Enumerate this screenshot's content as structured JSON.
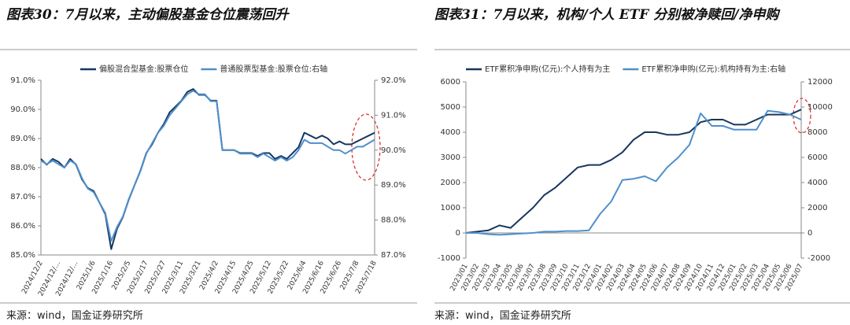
{
  "chart_data": [
    {
      "type": "line",
      "title": "图表30：7月以来，主动偏股基金仓位震荡回升",
      "source": "来源：wind，国金证券研究所",
      "categories": [
        "2024/12/2",
        null,
        null,
        "2024/12/…",
        null,
        null,
        "2024/12/…",
        null,
        null,
        "2025/1/6",
        null,
        null,
        "2025/1/16",
        null,
        null,
        "2025/2/5",
        null,
        null,
        "2025/2/17",
        null,
        null,
        "2025/2/27",
        null,
        null,
        "2025/3/11",
        null,
        null,
        "2025/3/21",
        null,
        null,
        "2025/4/2",
        null,
        null,
        "2025/4/15",
        null,
        null,
        "2025/4/25",
        null,
        null,
        "2025/5/12",
        null,
        null,
        "2025/5/22",
        null,
        null,
        "2025/6/4",
        null,
        null,
        "2025/6/16",
        null,
        null,
        "2025/6/26",
        null,
        null,
        "2025/7/8",
        null,
        null,
        "2025/7/18"
      ],
      "series": [
        {
          "name": "偏股混合型基金:股票仓位",
          "color": "#17375e",
          "values": [
            88.3,
            88.1,
            88.3,
            88.2,
            88.0,
            88.3,
            88.1,
            87.6,
            87.3,
            87.2,
            86.8,
            86.4,
            85.2,
            85.9,
            86.3,
            86.9,
            87.4,
            87.9,
            88.5,
            88.8,
            89.2,
            89.5,
            89.9,
            90.1,
            90.3,
            90.6,
            90.7,
            90.5,
            90.5,
            90.3,
            90.3,
            88.6,
            88.6,
            88.6,
            88.5,
            88.5,
            88.5,
            88.4,
            88.5,
            88.5,
            88.3,
            88.4,
            88.3,
            88.5,
            88.7,
            89.2,
            89.1,
            89.0,
            89.1,
            89.0,
            88.8,
            88.9,
            88.8,
            88.8,
            88.9,
            89.0,
            89.1,
            89.2
          ]
        },
        {
          "name": "普通股票型基金:股票仓位:右轴",
          "color": "#4f8fcc",
          "axis": "y2",
          "values": [
            89.7,
            89.6,
            89.7,
            89.6,
            89.5,
            89.7,
            89.6,
            89.2,
            88.9,
            88.8,
            88.5,
            88.2,
            87.4,
            87.8,
            88.1,
            88.6,
            89.0,
            89.4,
            89.9,
            90.2,
            90.5,
            90.7,
            91.0,
            91.2,
            91.4,
            91.6,
            91.7,
            91.6,
            91.6,
            91.4,
            91.4,
            90.0,
            90.0,
            90.0,
            89.9,
            89.9,
            89.9,
            89.8,
            89.9,
            89.8,
            89.7,
            89.8,
            89.7,
            89.8,
            90.0,
            90.3,
            90.2,
            90.2,
            90.2,
            90.1,
            90.0,
            90.0,
            89.9,
            90.0,
            90.1,
            90.1,
            90.2,
            90.3
          ]
        }
      ],
      "ylim": [
        85,
        91
      ],
      "yticks": [
        {
          "value": 85,
          "label": "85.0%"
        },
        {
          "value": 86,
          "label": "86.0%"
        },
        {
          "value": 87,
          "label": "87.0%"
        },
        {
          "value": 88,
          "label": "88.0%"
        },
        {
          "value": 89,
          "label": "89.0%"
        },
        {
          "value": 90,
          "label": "90.0%"
        },
        {
          "value": 91,
          "label": "91.0%"
        }
      ],
      "y2lim": [
        87,
        92
      ],
      "y2ticks": [
        {
          "value": 87,
          "label": "87.0%"
        },
        {
          "value": 88,
          "label": "88.0%"
        },
        {
          "value": 89,
          "label": "89.0%"
        },
        {
          "value": 90,
          "label": "90.0%"
        },
        {
          "value": 91,
          "label": "91.0%"
        },
        {
          "value": 92,
          "label": "92.0%"
        }
      ],
      "grid": false,
      "legend": "top"
    },
    {
      "type": "line",
      "title": "图表31：7月以来，机构/个人 ETF 分别被净赎回/净申购",
      "source": "来源：wind，国金证券研究所",
      "categories": [
        "2023/01",
        "2023/02",
        "2023/03",
        "2023/04",
        "2023/05",
        "2023/06",
        "2023/07",
        "2023/08",
        "2023/09",
        "2023/10",
        "2023/11",
        "2023/12",
        "2024/01",
        "2024/02",
        "2024/03",
        "2024/04",
        "2024/05",
        "2024/06",
        "2024/07",
        "2024/08",
        "2024/09",
        "2024/10",
        "2024/11",
        "2024/12",
        "2025/01",
        "2025/02",
        "2025/03",
        "2025/04",
        "2025/05",
        "2025/06",
        "2025/07"
      ],
      "series": [
        {
          "name": "ETF累积净申购(亿元):个人持有为主",
          "color": "#17375e",
          "values": [
            0,
            50,
            100,
            300,
            200,
            600,
            1000,
            1500,
            1800,
            2200,
            2600,
            2700,
            2700,
            2900,
            3200,
            3700,
            4000,
            4000,
            3900,
            3900,
            4000,
            4400,
            4500,
            4500,
            4300,
            4300,
            4500,
            4700,
            4700,
            4700,
            4900
          ]
        },
        {
          "name": "ETF累积净申购(亿元):机构持有为主:右轴",
          "color": "#4f8fcc",
          "axis": "y2",
          "values": [
            0,
            0,
            -100,
            -150,
            -100,
            -50,
            0,
            100,
            100,
            150,
            150,
            200,
            1500,
            2500,
            4200,
            4300,
            4500,
            4100,
            5200,
            6000,
            7000,
            9500,
            8500,
            8500,
            8200,
            8200,
            8200,
            9700,
            9600,
            9400,
            9000
          ]
        }
      ],
      "ylim": [
        -1000,
        6000
      ],
      "yticks": [
        -1000,
        0,
        1000,
        2000,
        3000,
        4000,
        5000,
        6000
      ],
      "y2lim": [
        -2000,
        12000
      ],
      "y2ticks": [
        -2000,
        0,
        2000,
        4000,
        6000,
        8000,
        10000,
        12000
      ],
      "grid": false,
      "legend": "top"
    }
  ]
}
